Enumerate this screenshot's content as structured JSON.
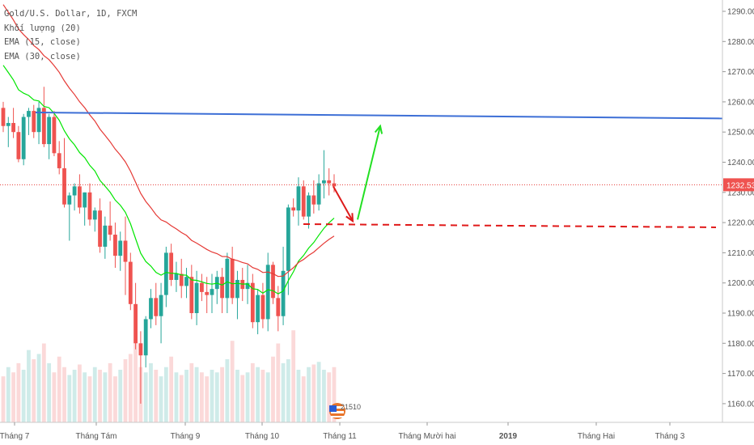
{
  "legend": {
    "symbol": "Gold/U.S. Dollar, 1D, FXCM",
    "volume": "Khối lượng (20)",
    "ema15": "EMA (15, close)",
    "ema30": "EMA (30, close)"
  },
  "badge": {
    "text": "21510"
  },
  "colors": {
    "up": "#26a69a",
    "down": "#ef5350",
    "ema15": "#00e600",
    "ema30": "#e53935",
    "trendline": "#3d6fd6",
    "support": "#e01919",
    "arrow_up": "#23e023",
    "arrow_down": "#dd1a1a",
    "price_line": "#e53935",
    "price_badge": "#ef5350"
  },
  "chart_data": {
    "type": "candlestick",
    "price_axis": {
      "ticks": [
        "1290.00",
        "1280.00",
        "1270.00",
        "1260.00",
        "1250.00",
        "1240.00",
        "1230.00",
        "1220.00",
        "1210.00",
        "1200.00",
        "1190.00",
        "1180.00",
        "1170.00",
        "1160.00"
      ],
      "values": [
        1290,
        1280,
        1270,
        1260,
        1250,
        1240,
        1230,
        1220,
        1210,
        1200,
        1190,
        1180,
        1170,
        1160
      ],
      "range": [
        1155,
        1292
      ]
    },
    "time_axis": {
      "labels": [
        "Tháng 7",
        "Tháng Tám",
        "Tháng 9",
        "Tháng 10",
        "Tháng 11",
        "Tháng Mười hai",
        "2019",
        "Tháng Hai",
        "Tháng 3"
      ]
    },
    "current_price": "1232.53",
    "current_price_value": 1232.53,
    "candles": [
      [
        1258,
        1260,
        1250,
        1252
      ],
      [
        1252,
        1255,
        1245,
        1253
      ],
      [
        1253,
        1258,
        1248,
        1250
      ],
      [
        1250,
        1252,
        1240,
        1241
      ],
      [
        1241,
        1256,
        1239,
        1255
      ],
      [
        1255,
        1258,
        1249,
        1257
      ],
      [
        1257,
        1259,
        1248,
        1250
      ],
      [
        1250,
        1260,
        1246,
        1258
      ],
      [
        1258,
        1265,
        1245,
        1246
      ],
      [
        1246,
        1256,
        1241,
        1255
      ],
      [
        1255,
        1257,
        1242,
        1243
      ],
      [
        1243,
        1247,
        1236,
        1238
      ],
      [
        1238,
        1248,
        1225,
        1226
      ],
      [
        1226,
        1230,
        1214,
        1229
      ],
      [
        1229,
        1233,
        1224,
        1232
      ],
      [
        1232,
        1236,
        1223,
        1225
      ],
      [
        1225,
        1230,
        1219,
        1230
      ],
      [
        1230,
        1233,
        1219,
        1221
      ],
      [
        1221,
        1225,
        1217,
        1224
      ],
      [
        1224,
        1228,
        1210,
        1212
      ],
      [
        1212,
        1222,
        1208,
        1219
      ],
      [
        1219,
        1227,
        1214,
        1216
      ],
      [
        1216,
        1220,
        1205,
        1209
      ],
      [
        1209,
        1217,
        1204,
        1214
      ],
      [
        1214,
        1222,
        1196,
        1207
      ],
      [
        1207,
        1210,
        1191,
        1193
      ],
      [
        1193,
        1200,
        1178,
        1180
      ],
      [
        1180,
        1184,
        1160,
        1176
      ],
      [
        1176,
        1189,
        1172,
        1188
      ],
      [
        1188,
        1198,
        1185,
        1195
      ],
      [
        1195,
        1200,
        1186,
        1189
      ],
      [
        1189,
        1200,
        1180,
        1196
      ],
      [
        1196,
        1212,
        1192,
        1210
      ],
      [
        1210,
        1213,
        1199,
        1201
      ],
      [
        1201,
        1207,
        1197,
        1203
      ],
      [
        1203,
        1208,
        1195,
        1199
      ],
      [
        1199,
        1205,
        1195,
        1202
      ],
      [
        1202,
        1206,
        1188,
        1190
      ],
      [
        1190,
        1204,
        1186,
        1200
      ],
      [
        1200,
        1203,
        1194,
        1197
      ],
      [
        1197,
        1202,
        1190,
        1196
      ],
      [
        1196,
        1203,
        1190,
        1198
      ],
      [
        1198,
        1204,
        1193,
        1202
      ],
      [
        1202,
        1205,
        1190,
        1195
      ],
      [
        1195,
        1210,
        1190,
        1208
      ],
      [
        1208,
        1212,
        1193,
        1195
      ],
      [
        1195,
        1204,
        1188,
        1201
      ],
      [
        1201,
        1205,
        1194,
        1198
      ],
      [
        1198,
        1206,
        1193,
        1200
      ],
      [
        1200,
        1203,
        1185,
        1187
      ],
      [
        1187,
        1198,
        1183,
        1196
      ],
      [
        1196,
        1200,
        1185,
        1188
      ],
      [
        1188,
        1210,
        1184,
        1206
      ],
      [
        1206,
        1207,
        1193,
        1195
      ],
      [
        1195,
        1199,
        1184,
        1189
      ],
      [
        1189,
        1212,
        1186,
        1204
      ],
      [
        1204,
        1226,
        1196,
        1225
      ],
      [
        1225,
        1228,
        1222,
        1224
      ],
      [
        1224,
        1235,
        1219,
        1232
      ],
      [
        1232,
        1234,
        1221,
        1222
      ],
      [
        1222,
        1230,
        1218,
        1229
      ],
      [
        1229,
        1234,
        1223,
        1226
      ],
      [
        1226,
        1236,
        1224,
        1233
      ],
      [
        1233,
        1244,
        1228,
        1234
      ],
      [
        1234,
        1238,
        1229,
        1233
      ],
      [
        1233,
        1236,
        1230,
        1232
      ]
    ],
    "volume": [
      35,
      42,
      38,
      45,
      40,
      55,
      48,
      52,
      60,
      45,
      38,
      50,
      42,
      36,
      40,
      44,
      38,
      35,
      42,
      40,
      38,
      45,
      35,
      40,
      48,
      52,
      60,
      42,
      38,
      45,
      40,
      35,
      42,
      50,
      38,
      36,
      40,
      45,
      42,
      38,
      35,
      40,
      38,
      42,
      48,
      62,
      40,
      36,
      38,
      45,
      42,
      40,
      38,
      50,
      60,
      45,
      48,
      70,
      40,
      35,
      42,
      44,
      46,
      40,
      38,
      42
    ],
    "overlays": {
      "resistance_line": [
        1256.5,
        1254.5
      ],
      "support_level": 1219.5
    }
  }
}
